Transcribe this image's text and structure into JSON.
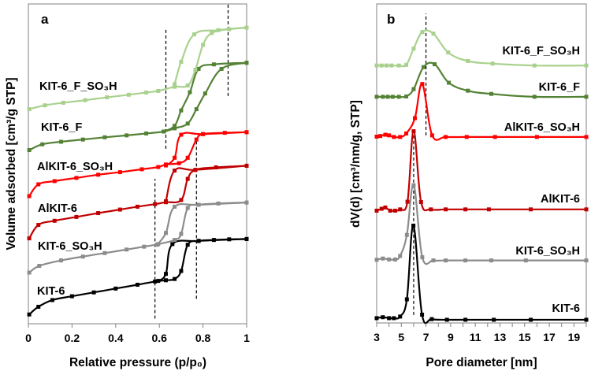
{
  "chart_data": [
    {
      "type": "line",
      "panel_label": "a",
      "xlabel": "Relative pressure (p/p₀)",
      "ylabel": "Volume adsorbed [cm³/g STP]",
      "xlim": [
        0,
        1
      ],
      "ylim": [
        0,
        100
      ],
      "xticks": [
        "0",
        "0.2",
        "0.4",
        "0.6",
        "0.8",
        "1"
      ],
      "xtick_values": [
        0,
        0.2,
        0.4,
        0.6,
        0.8,
        1
      ],
      "grid": false,
      "dashed_lines": [
        {
          "x": 0.63,
          "y": [
            54.7,
            92.2
          ]
        },
        {
          "x": 0.915,
          "y": [
            71.2,
            100
          ]
        },
        {
          "x": 0.58,
          "y": [
            1.6,
            45.3
          ]
        },
        {
          "x": 0.77,
          "y": [
            7.8,
            57.6
          ]
        }
      ],
      "series": [
        {
          "name": "KIT-6",
          "color": "#000000",
          "adsorption": [
            [
              0.004,
              2.9
            ],
            [
              0.046,
              5.3
            ],
            [
              0.11,
              7.4
            ],
            [
              0.2,
              8.6
            ],
            [
              0.3,
              9.8
            ],
            [
              0.4,
              11
            ],
            [
              0.5,
              12.2
            ],
            [
              0.58,
              13.2
            ],
            [
              0.63,
              13.6
            ],
            [
              0.67,
              14.0
            ],
            [
              0.7,
              16.5
            ],
            [
              0.73,
              24.7
            ],
            [
              0.78,
              25.9
            ],
            [
              0.85,
              26.2
            ],
            [
              0.92,
              26.4
            ],
            [
              1,
              26.5
            ]
          ],
          "desorption": [
            [
              1,
              26.5
            ],
            [
              0.78,
              25.9
            ],
            [
              0.66,
              24.9
            ],
            [
              0.63,
              15.6
            ],
            [
              0.595,
              13.4
            ]
          ]
        },
        {
          "name": "KIT-6_SO₃H",
          "color": "#8c8c8c",
          "adsorption": [
            [
              0.004,
              16.0
            ],
            [
              0.05,
              18.1
            ],
            [
              0.15,
              19.8
            ],
            [
              0.25,
              21
            ],
            [
              0.35,
              22.1
            ],
            [
              0.45,
              23.2
            ],
            [
              0.53,
              24.1
            ],
            [
              0.595,
              24.9
            ],
            [
              0.67,
              26.2
            ],
            [
              0.7,
              28.1
            ],
            [
              0.73,
              36.2
            ],
            [
              0.78,
              37.2
            ],
            [
              0.87,
              37.6
            ],
            [
              1,
              37.9
            ]
          ],
          "desorption": [
            [
              1,
              37.9
            ],
            [
              0.78,
              37.2
            ],
            [
              0.67,
              36.6
            ],
            [
              0.63,
              28.4
            ],
            [
              0.59,
              24.7
            ]
          ]
        },
        {
          "name": "AlKIT-6",
          "color": "#c00000",
          "adsorption": [
            [
              0.004,
              26.7
            ],
            [
              0.046,
              30.9
            ],
            [
              0.12,
              32.2
            ],
            [
              0.22,
              33.4
            ],
            [
              0.32,
              34.6
            ],
            [
              0.42,
              35.7
            ],
            [
              0.5,
              36.6
            ],
            [
              0.58,
              37.4
            ],
            [
              0.63,
              38.0
            ],
            [
              0.7,
              38.7
            ],
            [
              0.73,
              45.3
            ],
            [
              0.765,
              48.1
            ],
            [
              0.86,
              48.9
            ],
            [
              1,
              49.4
            ]
          ],
          "desorption": [
            [
              1,
              49.4
            ],
            [
              0.765,
              48.1
            ],
            [
              0.67,
              47.9
            ],
            [
              0.63,
              38.3
            ]
          ]
        },
        {
          "name": "AlKIT-6_SO₃H",
          "color": "#ff0000",
          "adsorption": [
            [
              0.004,
              39.9
            ],
            [
              0.046,
              43.6
            ],
            [
              0.12,
              44.6
            ],
            [
              0.22,
              45.6
            ],
            [
              0.32,
              46.6
            ],
            [
              0.42,
              47.4
            ],
            [
              0.52,
              48.3
            ],
            [
              0.595,
              49.0
            ],
            [
              0.63,
              49.8
            ],
            [
              0.69,
              50.2
            ],
            [
              0.73,
              51.9
            ],
            [
              0.77,
              57.6
            ],
            [
              0.8,
              59.3
            ],
            [
              0.9,
              59.7
            ],
            [
              1,
              59.9
            ]
          ],
          "desorption": [
            [
              1,
              59.9
            ],
            [
              0.8,
              59.3
            ],
            [
              0.7,
              59.1
            ],
            [
              0.67,
              51.9
            ],
            [
              0.63,
              49.5
            ]
          ]
        },
        {
          "name": "KIT-6_F",
          "color": "#548235",
          "adsorption": [
            [
              0.004,
              54.3
            ],
            [
              0.064,
              56.1
            ],
            [
              0.15,
              56.9
            ],
            [
              0.25,
              57.6
            ],
            [
              0.35,
              58.3
            ],
            [
              0.45,
              58.9
            ],
            [
              0.54,
              59.5
            ],
            [
              0.62,
              60.1
            ],
            [
              0.67,
              61.1
            ],
            [
              0.73,
              62.6
            ],
            [
              0.77,
              67.1
            ],
            [
              0.81,
              72.0
            ],
            [
              0.885,
              79.7
            ],
            [
              1,
              81.6
            ]
          ],
          "desorption": [
            [
              1,
              81.6
            ],
            [
              0.85,
              81.1
            ],
            [
              0.78,
              79.7
            ],
            [
              0.74,
              72.4
            ],
            [
              0.7,
              66.7
            ],
            [
              0.67,
              61.9
            ],
            [
              0.62,
              60.1
            ]
          ]
        },
        {
          "name": "KIT-6_F_SO₃H",
          "color": "#a9d18e",
          "adsorption": [
            [
              0.004,
              67.1
            ],
            [
              0.076,
              68.3
            ],
            [
              0.16,
              69.1
            ],
            [
              0.26,
              69.9
            ],
            [
              0.36,
              70.8
            ],
            [
              0.46,
              71.6
            ],
            [
              0.54,
              72.3
            ],
            [
              0.595,
              72.8
            ],
            [
              0.67,
              74.1
            ],
            [
              0.73,
              74.5
            ],
            [
              0.765,
              79.4
            ],
            [
              0.8,
              87.2
            ],
            [
              0.84,
              90.9
            ],
            [
              0.92,
              92.1
            ],
            [
              1,
              92.6
            ]
          ],
          "desorption": [
            [
              1,
              92.6
            ],
            [
              0.87,
              91.8
            ],
            [
              0.76,
              90.5
            ],
            [
              0.7,
              81.9
            ],
            [
              0.67,
              74.9
            ]
          ]
        }
      ]
    },
    {
      "type": "line",
      "panel_label": "b",
      "xlabel": "Pore diameter [nm]",
      "ylabel": "dV(d) [cm³/nm/g, STP]",
      "xlim": [
        3,
        20
      ],
      "ylim": [
        0,
        100
      ],
      "xticks": [
        "3",
        "5",
        "7",
        "9",
        "11",
        "13",
        "15",
        "17",
        "19"
      ],
      "xtick_values": [
        3,
        5,
        7,
        9,
        11,
        13,
        15,
        17,
        19
      ],
      "grid": false,
      "dashed_lines": [
        {
          "x": 7.0,
          "y": [
            58.8,
            97
          ]
        },
        {
          "x": 6.0,
          "y": [
            2.5,
            61
          ]
        }
      ],
      "series": [
        {
          "name": "KIT-6",
          "color": "#000000",
          "points": [
            [
              3,
              1.5
            ],
            [
              3.5,
              1.8
            ],
            [
              4,
              1.5
            ],
            [
              4.4,
              1.5
            ],
            [
              4.9,
              2
            ],
            [
              5.45,
              7.4
            ],
            [
              5.98,
              30.5
            ],
            [
              6.68,
              2.6
            ],
            [
              7.47,
              1.2
            ],
            [
              8.7,
              1.0
            ],
            [
              10.2,
              1.0
            ],
            [
              12.5,
              1.0
            ],
            [
              15.5,
              1.0
            ],
            [
              20,
              1.0
            ]
          ]
        },
        {
          "name": "KIT-6_SO₃H",
          "color": "#8c8c8c",
          "points": [
            [
              3,
              19.8
            ],
            [
              3.5,
              20.2
            ],
            [
              4,
              19.9
            ],
            [
              4.5,
              19.9
            ],
            [
              4.9,
              21
            ],
            [
              5.45,
              27.6
            ],
            [
              6.0,
              43.2
            ],
            [
              6.7,
              20.6
            ],
            [
              7.6,
              19.6
            ],
            [
              8.6,
              19.6
            ],
            [
              10.2,
              19.6
            ],
            [
              12.3,
              19.6
            ],
            [
              15.1,
              19.6
            ],
            [
              20,
              19.6
            ]
          ]
        },
        {
          "name": "AlKIT-6",
          "color": "#c00000",
          "points": [
            [
              3,
              35.2
            ],
            [
              3.4,
              35.8
            ],
            [
              3.7,
              36.2
            ],
            [
              4.1,
              35.2
            ],
            [
              4.5,
              35.2
            ],
            [
              4.9,
              35.6
            ],
            [
              5.5,
              38.0
            ],
            [
              6.0,
              60.1
            ],
            [
              6.6,
              37.9
            ],
            [
              7.4,
              35.6
            ],
            [
              8.6,
              35.6
            ],
            [
              10.2,
              35.6
            ],
            [
              12.1,
              35.6
            ],
            [
              15.5,
              35.6
            ],
            [
              20,
              35.6
            ]
          ]
        },
        {
          "name": "AlKIT-6_SO₃H",
          "color": "#ff0000",
          "points": [
            [
              3,
              58.4
            ],
            [
              3.3,
              58.6
            ],
            [
              3.7,
              59.0
            ],
            [
              4.0,
              58.8
            ],
            [
              4.4,
              58.3
            ],
            [
              4.9,
              58.3
            ],
            [
              5.4,
              59.4
            ],
            [
              6.1,
              64.2
            ],
            [
              6.7,
              74.9
            ],
            [
              7.5,
              58.8
            ],
            [
              8.6,
              58.3
            ],
            [
              10.3,
              58.3
            ],
            [
              12.6,
              58.3
            ],
            [
              16,
              58.3
            ],
            [
              20,
              58.3
            ]
          ]
        },
        {
          "name": "KIT-6_F",
          "color": "#548235",
          "points": [
            [
              3,
              70.9
            ],
            [
              3.5,
              70.9
            ],
            [
              3.9,
              70.9
            ],
            [
              4.3,
              70.9
            ],
            [
              4.8,
              70.9
            ],
            [
              5.4,
              71.0
            ],
            [
              6.0,
              73.3
            ],
            [
              6.8,
              80.2
            ],
            [
              7.7,
              81.1
            ],
            [
              8.85,
              75.3
            ],
            [
              10.4,
              72.8
            ],
            [
              12.3,
              71.8
            ],
            [
              15.8,
              70.9
            ],
            [
              20,
              70.9
            ]
          ]
        },
        {
          "name": "KIT-6_F_SO₃H",
          "color": "#a9d18e",
          "points": [
            [
              3,
              80.7
            ],
            [
              3.4,
              80.7
            ],
            [
              3.8,
              80.7
            ],
            [
              4.2,
              80.7
            ],
            [
              4.8,
              80.7
            ],
            [
              5.4,
              80.9
            ],
            [
              6.0,
              86.0
            ],
            [
              6.7,
              91.2
            ],
            [
              7.6,
              90.7
            ],
            [
              8.8,
              84.8
            ],
            [
              10.4,
              82.1
            ],
            [
              12.4,
              81.3
            ],
            [
              15.8,
              80.7
            ],
            [
              20,
              80.7
            ]
          ]
        }
      ]
    }
  ]
}
